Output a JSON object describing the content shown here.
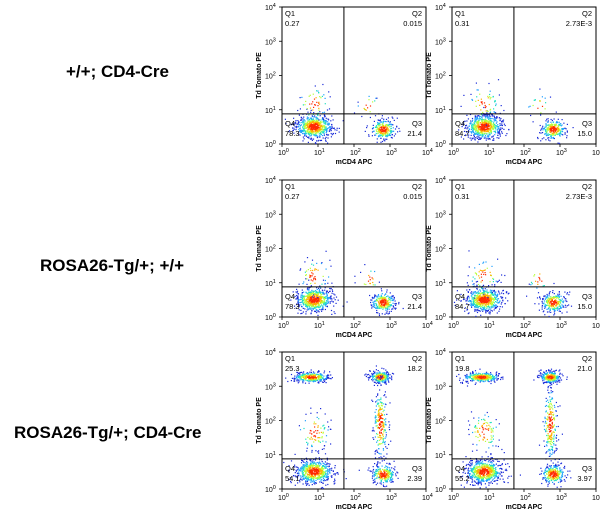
{
  "rows": [
    {
      "label": "+/+;  CD4-Cre"
    },
    {
      "label": "ROSA26-Tg/+;  +/+"
    },
    {
      "label": "ROSA26-Tg/+;  CD4-Cre"
    }
  ],
  "axes": {
    "xlabel": "mCD4 APC",
    "ylabel": "Td Tomato PE",
    "tick_base": "10",
    "tick_exponents": [
      "0",
      "1",
      "2",
      "3",
      "4"
    ]
  },
  "chart_data": [
    {
      "type": "scatter",
      "row": 0,
      "col": 0,
      "xlabel": "mCD4 APC",
      "ylabel": "Td Tomato PE",
      "xlim": [
        0,
        4
      ],
      "ylim": [
        0,
        4
      ],
      "quadrants": {
        "Q1": "0.27",
        "Q2": "0.015",
        "Q3": "21.4",
        "Q4": "78.3"
      }
    },
    {
      "type": "scatter",
      "row": 0,
      "col": 1,
      "xlabel": "mCD4 APC",
      "ylabel": "Td Tomato PE",
      "xlim": [
        0,
        4
      ],
      "ylim": [
        0,
        4
      ],
      "quadrants": {
        "Q1": "0.31",
        "Q2": "2.73E-3",
        "Q3": "15.0",
        "Q4": "84.7"
      }
    },
    {
      "type": "scatter",
      "row": 1,
      "col": 0,
      "xlabel": "mCD4 APC",
      "ylabel": "Td Tomato PE",
      "xlim": [
        0,
        4
      ],
      "ylim": [
        0,
        4
      ],
      "quadrants": {
        "Q1": "0.27",
        "Q2": "0.015",
        "Q3": "21.4",
        "Q4": "78.3"
      }
    },
    {
      "type": "scatter",
      "row": 1,
      "col": 1,
      "xlabel": "mCD4 APC",
      "ylabel": "Td Tomato PE",
      "xlim": [
        0,
        4
      ],
      "ylim": [
        0,
        4
      ],
      "quadrants": {
        "Q1": "0.31",
        "Q2": "2.73E-3",
        "Q3": "15.0",
        "Q4": "84.7"
      }
    },
    {
      "type": "scatter",
      "row": 2,
      "col": 0,
      "xlabel": "mCD4 APC",
      "ylabel": "Td Tomato PE",
      "xlim": [
        0,
        4
      ],
      "ylim": [
        0,
        4
      ],
      "quadrants": {
        "Q1": "25.3",
        "Q2": "18.2",
        "Q3": "2.39",
        "Q4": "54.1"
      }
    },
    {
      "type": "scatter",
      "row": 2,
      "col": 1,
      "xlabel": "mCD4 APC",
      "ylabel": "Td Tomato PE",
      "xlim": [
        0,
        4
      ],
      "ylim": [
        0,
        4
      ],
      "quadrants": {
        "Q1": "19.8",
        "Q2": "21.0",
        "Q3": "3.97",
        "Q4": "55.2"
      }
    }
  ]
}
